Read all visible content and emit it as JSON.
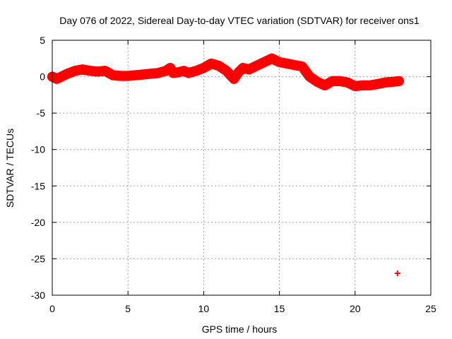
{
  "chart_data": {
    "type": "scatter",
    "title": "Day 076 of 2022, Sidereal Day-to-day VTEC variation (SDTVAR) for receiver ons1",
    "xlabel": "GPS time / hours",
    "ylabel": "SDTVAR / TECUs",
    "xlim": [
      0,
      25
    ],
    "ylim": [
      -30,
      5
    ],
    "xticks": [
      0,
      5,
      10,
      15,
      20,
      25
    ],
    "yticks": [
      5,
      0,
      -5,
      -10,
      -15,
      -20,
      -25,
      -30
    ],
    "x_tick_labels": [
      "0",
      "5",
      "10",
      "15",
      "20",
      "25"
    ],
    "y_tick_labels": [
      "5",
      "0",
      "-5",
      "-10",
      "-15",
      "-20",
      "-25",
      "-30"
    ],
    "grid": true,
    "marker_color": "#ff0000",
    "series": [
      {
        "name": "SDTVAR",
        "band_width_tecu": 1.0,
        "x": [
          0.0,
          0.3,
          0.6,
          1.0,
          1.5,
          2.0,
          2.5,
          3.0,
          3.5,
          4.0,
          4.5,
          5.0,
          5.5,
          6.0,
          6.5,
          7.0,
          7.5,
          7.8,
          8.0,
          8.3,
          8.7,
          9.0,
          9.5,
          10.0,
          10.5,
          11.0,
          11.5,
          12.0,
          12.3,
          12.6,
          13.0,
          13.5,
          14.0,
          14.5,
          15.0,
          15.5,
          16.0,
          16.5,
          17.0,
          17.5,
          18.0,
          18.5,
          19.0,
          19.5,
          20.0,
          20.5,
          21.0,
          21.5,
          22.0,
          22.5,
          22.9
        ],
        "y": [
          0.0,
          -0.3,
          0.0,
          0.4,
          0.8,
          1.0,
          0.8,
          0.7,
          0.8,
          0.2,
          0.1,
          0.1,
          0.2,
          0.3,
          0.4,
          0.5,
          0.8,
          1.2,
          0.5,
          0.6,
          0.8,
          0.5,
          0.8,
          1.2,
          1.8,
          1.5,
          0.8,
          -0.3,
          0.6,
          1.2,
          1.0,
          1.5,
          2.0,
          2.5,
          2.0,
          1.8,
          1.6,
          1.4,
          0.0,
          -0.7,
          -1.2,
          -0.6,
          -0.6,
          -0.8,
          -1.3,
          -1.2,
          -1.2,
          -1.0,
          -0.8,
          -0.7,
          -0.6
        ]
      },
      {
        "name": "outlier",
        "x": [
          22.8
        ],
        "y": [
          -27.0
        ]
      }
    ]
  }
}
